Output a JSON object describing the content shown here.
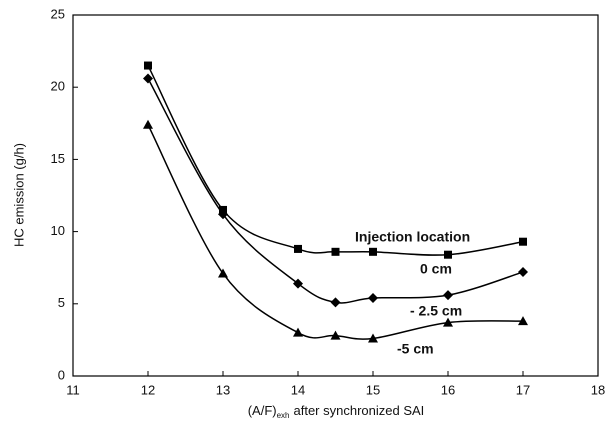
{
  "chart_data": {
    "type": "line",
    "y_label": "HC emission (g/h)",
    "x_label": {
      "main": "(A/F)",
      "sub": "exh",
      "rest": "after synchronized SAI"
    },
    "annotation": "Injection location",
    "x": [
      12,
      13,
      14,
      14.5,
      15,
      16,
      17
    ],
    "series": [
      {
        "name": "0 cm",
        "color": "#000000",
        "marker": "square",
        "values": [
          21.5,
          11.5,
          8.8,
          8.6,
          8.6,
          8.4,
          9.3
        ]
      },
      {
        "name": "- 2.5 cm",
        "color": "#000000",
        "marker": "diamond",
        "values": [
          20.6,
          11.2,
          6.4,
          5.1,
          5.4,
          5.6,
          7.2
        ]
      },
      {
        "name": "-5 cm",
        "color": "#000000",
        "marker": "triangle",
        "values": [
          17.4,
          7.1,
          3.0,
          2.8,
          2.6,
          3.7,
          3.8
        ]
      }
    ],
    "xlim": [
      11,
      18
    ],
    "xticks": [
      11,
      12,
      13,
      14,
      15,
      16,
      17,
      18
    ],
    "ylim": [
      0,
      25
    ],
    "yticks": [
      0,
      5,
      10,
      15,
      20,
      25
    ],
    "grid": false
  }
}
